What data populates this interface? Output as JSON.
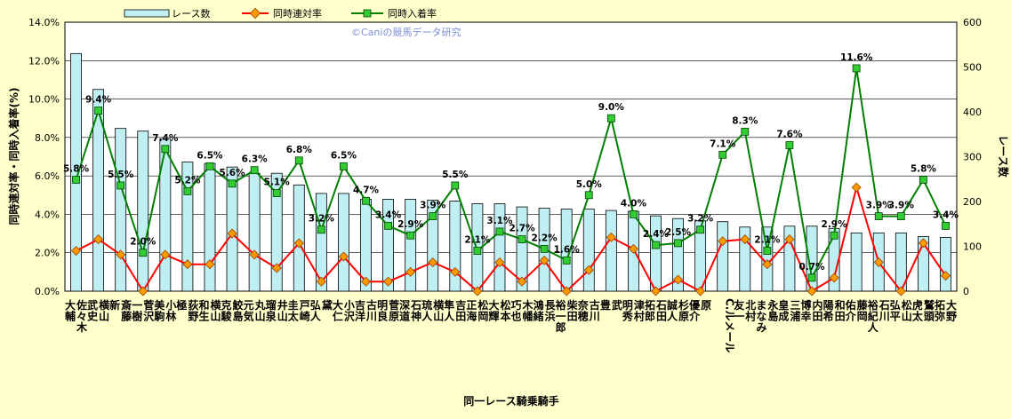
{
  "chart_data": {
    "type": "bar",
    "title": "",
    "xlabel": "同一レース騎乗騎手",
    "ylabel": "同時連対率・同時入着率(%)",
    "y2label": "レース数",
    "watermark": "©Caniの競馬データ研究",
    "ylim": [
      0,
      14
    ],
    "y2lim": [
      0,
      600
    ],
    "yticks": [
      "0.0%",
      "2.0%",
      "4.0%",
      "6.0%",
      "8.0%",
      "10.0%",
      "12.0%",
      "14.0%"
    ],
    "y2ticks": [
      "0",
      "100",
      "200",
      "300",
      "400",
      "500",
      "600"
    ],
    "legend_position": "top",
    "categories": [
      [
        "佐々木",
        "大輔"
      ],
      [
        "横山",
        "武史"
      ],
      [
        "斎藤",
        "新"
      ],
      [
        "菅沢",
        "一樹"
      ],
      [
        "小林",
        "美駒"
      ],
      [
        "荻野",
        "極"
      ],
      [
        "横山",
        "和生"
      ],
      [
        "鮫島",
        "克駿"
      ],
      [
        "丸山",
        "元気"
      ],
      [
        "井山",
        "瑠泉"
      ],
      [
        "戸崎",
        "圭太"
      ],
      [
        "黛",
        "弘人"
      ],
      [
        "小沢",
        "大仁"
      ],
      [
        "古川",
        "吉洋"
      ],
      [
        "菅原",
        "明良"
      ],
      [
        "石神",
        "深道"
      ],
      [
        "横山",
        "琉人"
      ],
      [
        "吉田",
        "隼人"
      ],
      [
        "松岡",
        "正海"
      ],
      [
        "松本",
        "大輝"
      ],
      [
        "木幡",
        "巧也"
      ],
      [
        "長浜",
        "鴻緒"
      ],
      [
        "柴田",
        "裕一郎"
      ],
      [
        "古川",
        "奈穂"
      ],
      [
        "武",
        "豊"
      ],
      [
        "津村",
        "明秀"
      ],
      [
        "石田",
        "拓郎"
      ],
      [
        "杉原",
        "誠人"
      ],
      [
        "原",
        "優介"
      ],
      [
        "C.ルメール"
      ],
      [
        "北村",
        "友一"
      ],
      [
        "永島",
        "まなみ"
      ],
      [
        "三浦",
        "皇成"
      ],
      [
        "内田",
        "博幸"
      ],
      [
        "和田",
        "陽希"
      ],
      [
        "藤岡",
        "佑介"
      ],
      [
        "石川",
        "裕紀人"
      ],
      [
        "松山",
        "弘平"
      ],
      [
        "鷲頭",
        "虎太"
      ],
      [
        "大野",
        "拓弥"
      ]
    ],
    "series": [
      {
        "name": "レース数",
        "axis": "right",
        "kind": "bar",
        "color": "#bfeff2",
        "values": [
          530,
          450,
          363,
          357,
          340,
          288,
          285,
          277,
          263,
          263,
          237,
          218,
          218,
          205,
          205,
          205,
          203,
          201,
          195,
          195,
          188,
          185,
          183,
          183,
          180,
          178,
          168,
          162,
          157,
          155,
          143,
          143,
          145,
          145,
          140,
          130,
          130,
          130,
          122,
          120
        ]
      },
      {
        "name": "同時連対率",
        "axis": "left",
        "kind": "line",
        "color": "#ff0000",
        "marker_color": "#ff9900",
        "values": [
          2.1,
          2.7,
          1.9,
          0.0,
          1.9,
          1.4,
          1.4,
          3.0,
          1.9,
          1.2,
          2.5,
          0.5,
          1.8,
          0.5,
          0.5,
          1.0,
          1.5,
          1.0,
          0.0,
          1.5,
          0.5,
          1.6,
          0.0,
          1.1,
          2.8,
          2.2,
          0.0,
          0.6,
          0.0,
          2.6,
          2.7,
          1.4,
          2.7,
          0.0,
          0.7,
          5.4,
          1.5,
          0.0,
          2.5,
          0.8
        ]
      },
      {
        "name": "同時入着率",
        "axis": "left",
        "kind": "line",
        "color": "#008000",
        "marker_color": "#33cc33",
        "values": [
          5.8,
          9.4,
          5.5,
          2.0,
          7.4,
          5.2,
          6.5,
          5.6,
          6.3,
          5.1,
          6.8,
          3.2,
          6.5,
          4.7,
          3.4,
          2.9,
          3.9,
          5.5,
          2.1,
          3.1,
          2.7,
          2.2,
          1.6,
          5.0,
          9.0,
          4.0,
          2.4,
          2.5,
          3.2,
          7.1,
          8.3,
          2.1,
          7.6,
          0.7,
          2.9,
          11.6,
          3.9,
          3.9,
          5.8,
          3.4
        ]
      }
    ],
    "data_labels": [
      "5.8%",
      "9.4%",
      "5.5%",
      "2.0%",
      "7.4%",
      "5.2%",
      "6.5%",
      "5.6%",
      "6.3%",
      "5.1%",
      "6.8%",
      "3.2%",
      "6.5%",
      "4.7%",
      "3.4%",
      "2.9%",
      "3.9%",
      "5.5%",
      "2.1%",
      "3.1%",
      "2.7%",
      "2.2%",
      "1.6%",
      "5.0%",
      "9.0%",
      "4.0%",
      "2.4%",
      "2.5%",
      "3.2%",
      "7.1%",
      "8.3%",
      "2.1%",
      "7.6%",
      "0.7%",
      "2.9%",
      "11.6%",
      "3.9%",
      "3.9%",
      "5.8%",
      "3.4%"
    ]
  }
}
